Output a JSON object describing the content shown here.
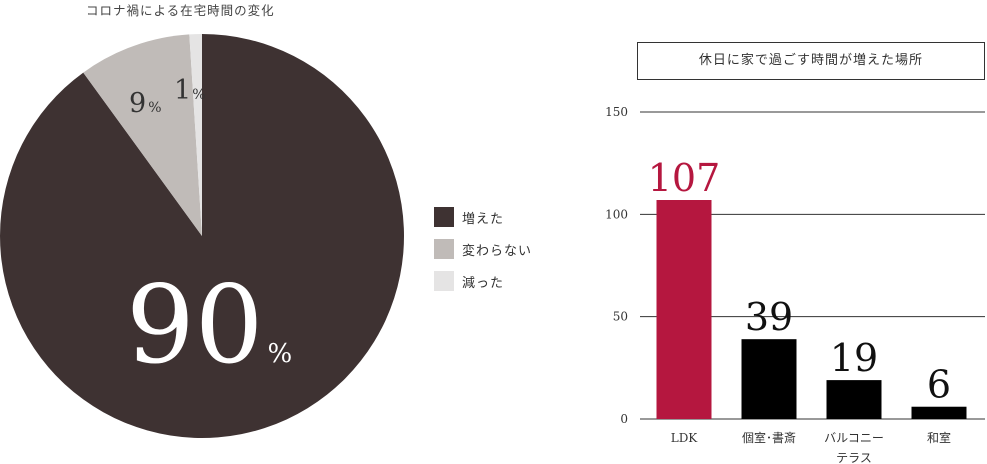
{
  "pie_chart": {
    "title": "コロナ禍による在宅時間の変化",
    "legend": [
      {
        "label": "増えた",
        "color": "#3e3232"
      },
      {
        "label": "変わらない",
        "color": "#c0bbb8"
      },
      {
        "label": "減った",
        "color": "#e5e4e4"
      }
    ]
  },
  "bar_chart": {
    "title": "休日に家で過ごす時間が増えた場所"
  },
  "chart_data": [
    {
      "type": "pie",
      "title": "コロナ禍による在宅時間の変化",
      "slices": [
        {
          "label": "増えた",
          "value": 90,
          "value_label": "90",
          "unit": "%",
          "color": "#3e3232"
        },
        {
          "label": "変わらない",
          "value": 9,
          "value_label": "9",
          "unit": "%",
          "color": "#c0bbb8"
        },
        {
          "label": "減った",
          "value": 1,
          "value_label": "1",
          "unit": "%",
          "color": "#e5e4e4"
        }
      ],
      "legend_position": "right"
    },
    {
      "type": "bar",
      "title": "休日に家で過ごす時間が増えた場所",
      "categories": [
        [
          "LDK"
        ],
        [
          "個室･書斎"
        ],
        [
          "バルコニー",
          "テラス"
        ],
        [
          "和室"
        ]
      ],
      "values": [
        107,
        39,
        19,
        6
      ],
      "value_labels": [
        "107",
        "39",
        "19",
        "6"
      ],
      "bar_colors": [
        "#b5173f",
        "#000000",
        "#000000",
        "#000000"
      ],
      "value_label_colors": [
        "#b5173f",
        "#111111",
        "#111111",
        "#111111"
      ],
      "ylim": [
        0,
        150
      ],
      "yticks": [
        "0",
        "50",
        "100",
        "150"
      ],
      "grid": true
    }
  ]
}
